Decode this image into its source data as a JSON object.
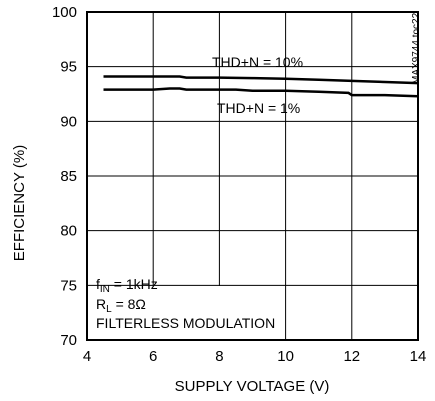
{
  "chart_data": {
    "type": "line",
    "title": "",
    "xlabel": "SUPPLY VOLTAGE (V)",
    "ylabel": "EFFICIENCY (%)",
    "xlim": [
      4,
      14
    ],
    "ylim": [
      70,
      100
    ],
    "xticks": [
      4,
      6,
      8,
      10,
      12,
      14
    ],
    "yticks": [
      70,
      75,
      80,
      85,
      90,
      95,
      100
    ],
    "grid": true,
    "series": [
      {
        "name": "THD+N = 10%",
        "x": [
          4.5,
          5,
          6,
          6.8,
          7,
          8,
          9,
          10,
          11,
          12,
          13,
          14
        ],
        "y": [
          94.1,
          94.1,
          94.1,
          94.1,
          94.0,
          94.0,
          93.95,
          93.9,
          93.8,
          93.7,
          93.6,
          93.5
        ]
      },
      {
        "name": "THD+N = 1%",
        "x": [
          4.5,
          5,
          6,
          6.5,
          6.8,
          7,
          8,
          8.5,
          9,
          10,
          11,
          11.9,
          12,
          13,
          14
        ],
        "y": [
          92.9,
          92.9,
          92.9,
          93.0,
          93.0,
          92.9,
          92.9,
          92.9,
          92.8,
          92.8,
          92.7,
          92.6,
          92.4,
          92.4,
          92.3
        ]
      }
    ],
    "annotations": {
      "fin_main": "f",
      "fin_sub": "IN",
      "fin_rest": " = 1kHz",
      "rl_main": "R",
      "rl_sub": "L",
      "rl_rest": " = 8Ω",
      "modulation": "FILTERLESS MODULATION",
      "part_tag": "MAX9744 toc22"
    }
  }
}
